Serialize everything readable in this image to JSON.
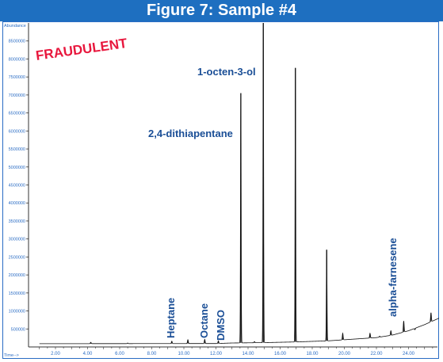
{
  "title": "Figure 7: Sample #4",
  "stamp": "FRAUDULENT",
  "colors": {
    "title_bg": "#1e6fc0",
    "title_text": "#ffffff",
    "stamp": "#e8173d",
    "label": "#1a4e96",
    "axis_text": "#2a6cc4",
    "trace": "#111111"
  },
  "chart_data": {
    "type": "line",
    "xlabel": "Time-->",
    "ylabel": "Abundance",
    "xlim": [
      0.5,
      25.9
    ],
    "ylim": [
      0,
      9000000
    ],
    "x_ticks": [
      "2.00",
      "4.00",
      "6.00",
      "8.00",
      "10.00",
      "12.00",
      "14.00",
      "16.00",
      "18.00",
      "20.00",
      "22.00",
      "24.00"
    ],
    "y_ticks": [
      "500000",
      "1000000",
      "1500000",
      "2000000",
      "2500000",
      "3000000",
      "3500000",
      "4000000",
      "4500000",
      "5000000",
      "5500000",
      "6000000",
      "6500000",
      "7000000",
      "7500000",
      "8000000",
      "8500000"
    ],
    "baseline": [
      [
        0.5,
        90000
      ],
      [
        12.0,
        95000
      ],
      [
        13.0,
        110000
      ],
      [
        15.0,
        120000
      ],
      [
        17.0,
        140000
      ],
      [
        19.0,
        170000
      ],
      [
        20.0,
        200000
      ],
      [
        21.0,
        230000
      ],
      [
        22.0,
        260000
      ],
      [
        23.0,
        330000
      ],
      [
        24.0,
        450000
      ],
      [
        25.0,
        620000
      ],
      [
        25.9,
        800000
      ]
    ],
    "peaks": [
      {
        "x": 4.2,
        "y": 130000,
        "label": ""
      },
      {
        "x": 6.5,
        "y": 110000,
        "label": ""
      },
      {
        "x": 9.25,
        "y": 160000,
        "label": "Heptane"
      },
      {
        "x": 10.25,
        "y": 200000,
        "label": ""
      },
      {
        "x": 11.3,
        "y": 210000,
        "label": "Octane"
      },
      {
        "x": 12.15,
        "y": 170000,
        "label": "DMSO"
      },
      {
        "x": 13.55,
        "y": 7050000,
        "label": "2,4-dithiapentane"
      },
      {
        "x": 14.4,
        "y": 150000,
        "label": ""
      },
      {
        "x": 14.95,
        "y": 9000000,
        "label": "1-octen-3-ol"
      },
      {
        "x": 16.95,
        "y": 7750000,
        "label": ""
      },
      {
        "x": 18.9,
        "y": 2700000,
        "label": ""
      },
      {
        "x": 19.9,
        "y": 380000,
        "label": ""
      },
      {
        "x": 21.6,
        "y": 380000,
        "label": ""
      },
      {
        "x": 22.2,
        "y": 300000,
        "label": ""
      },
      {
        "x": 22.9,
        "y": 450000,
        "label": ""
      },
      {
        "x": 23.7,
        "y": 720000,
        "label": "alpha-farnesene"
      },
      {
        "x": 24.4,
        "y": 480000,
        "label": ""
      },
      {
        "x": 25.4,
        "y": 950000,
        "label": ""
      }
    ]
  }
}
